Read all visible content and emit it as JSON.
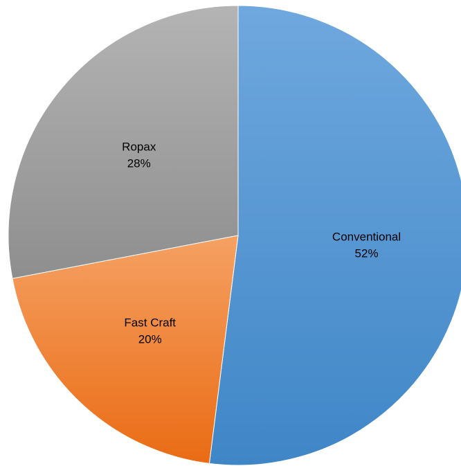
{
  "chart_data": {
    "type": "pie",
    "start_angle_deg": 0,
    "direction": "clockwise",
    "legend": false,
    "slices": [
      {
        "category": "Conventional",
        "label": "52%",
        "value": 52,
        "color_top": "#6fa8de",
        "color_bottom": "#3f86c7"
      },
      {
        "category": "Fast Craft",
        "label": "20%",
        "value": 20,
        "color_top": "#f5a163",
        "color_bottom": "#ea6b14"
      },
      {
        "category": "Ropax",
        "label": "28%",
        "value": 28,
        "color_top": "#b4b4b4",
        "color_bottom": "#8e8e8e"
      }
    ]
  }
}
